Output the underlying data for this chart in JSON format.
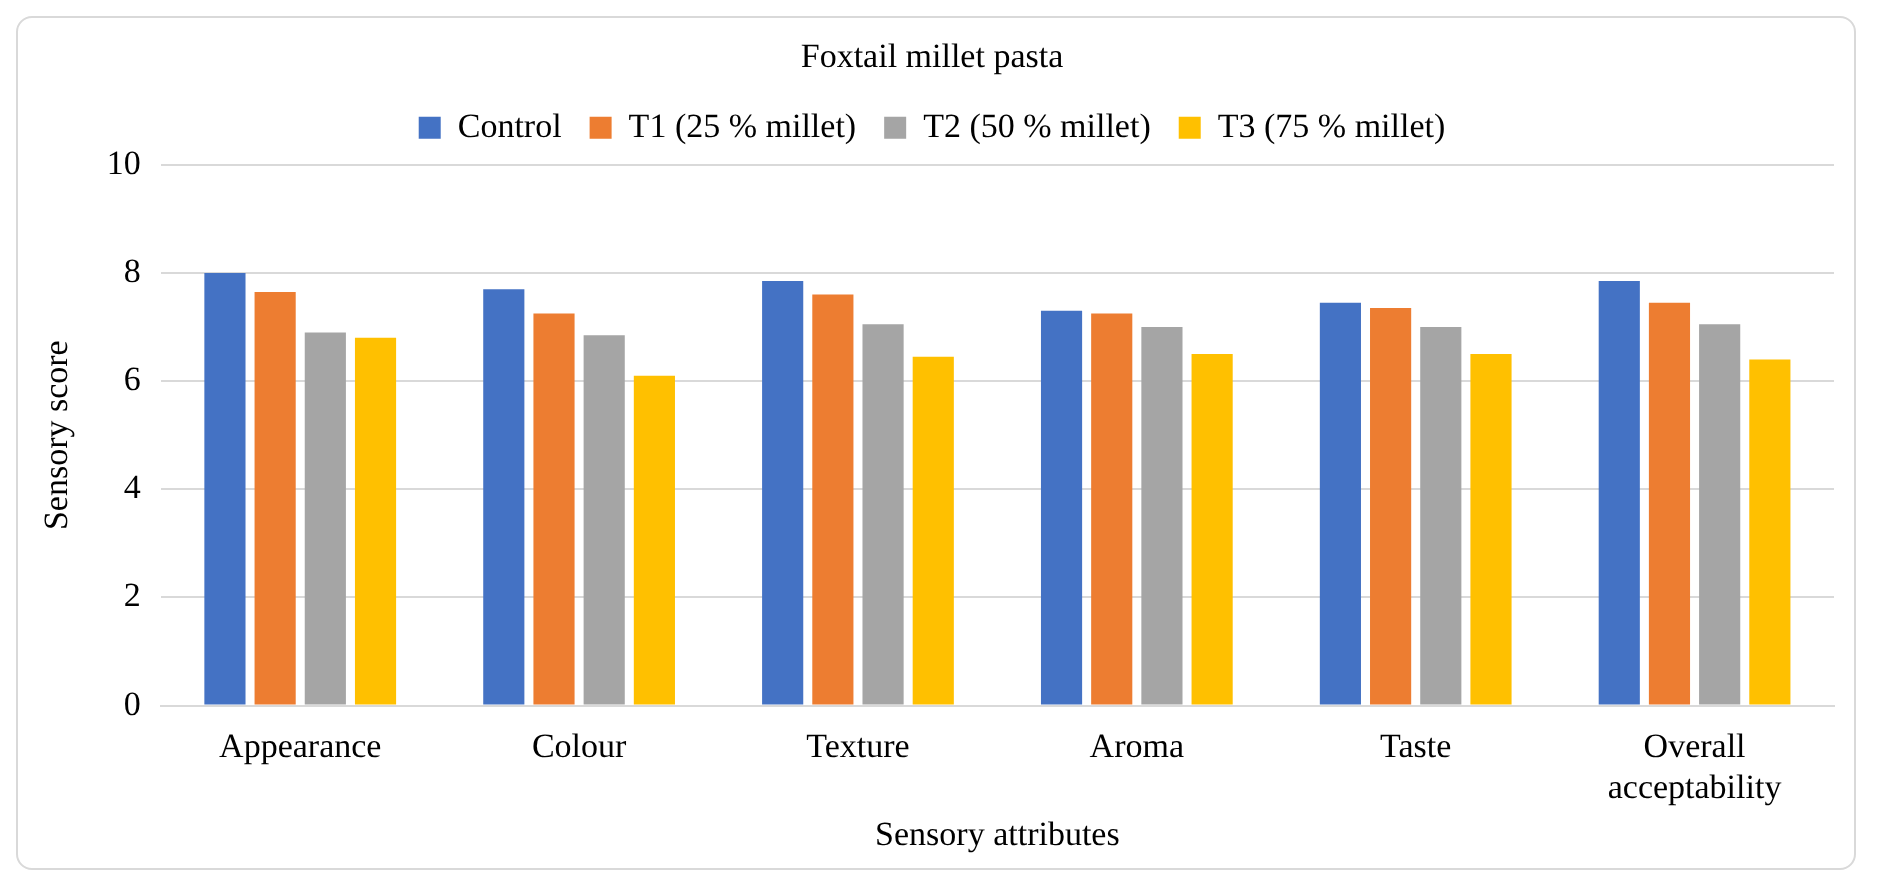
{
  "chart_data": {
    "type": "bar",
    "title": "Foxtail millet pasta",
    "xlabel": "Sensory attributes",
    "ylabel": "Sensory score",
    "categories": [
      "Appearance",
      "Colour",
      "Texture",
      "Aroma",
      "Taste",
      "Overall acceptability"
    ],
    "series": [
      {
        "name": "Control",
        "color": "#4472c4",
        "values": [
          8.0,
          7.7,
          7.85,
          7.3,
          7.45,
          7.85
        ]
      },
      {
        "name": "T1 (25 % millet)",
        "color": "#ed7d31",
        "values": [
          7.65,
          7.25,
          7.6,
          7.25,
          7.35,
          7.45
        ]
      },
      {
        "name": "T2 (50 % millet)",
        "color": "#a5a5a5",
        "values": [
          6.9,
          6.85,
          7.05,
          7.0,
          7.0,
          7.05
        ]
      },
      {
        "name": "T3 (75 % millet)",
        "color": "#ffc000",
        "values": [
          6.8,
          6.1,
          6.45,
          6.5,
          6.5,
          6.4
        ]
      }
    ],
    "ylim": [
      0,
      10
    ],
    "yticks": [
      0,
      2,
      4,
      6,
      8,
      10
    ],
    "grid": "y",
    "legend": "top"
  }
}
